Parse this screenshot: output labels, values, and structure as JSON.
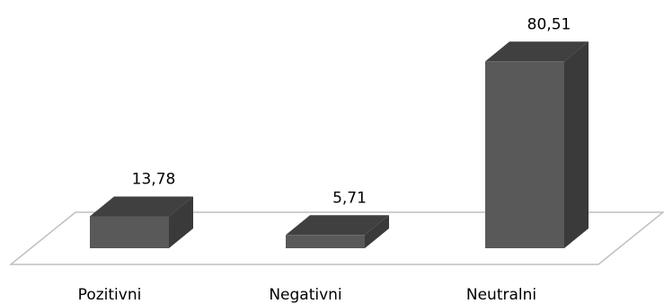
{
  "chart_data": {
    "type": "bar",
    "style": "3d-column",
    "categories": [
      "Pozitivni",
      "Negativni",
      "Neutralni"
    ],
    "values": [
      13.78,
      5.71,
      80.51
    ],
    "data_labels": [
      "13,78",
      "5,71",
      "80,51"
    ],
    "title": "",
    "xlabel": "",
    "ylabel": "",
    "ylim": [
      0,
      100
    ],
    "grid": false,
    "legend": "none",
    "colors": {
      "bar_front": "#595959",
      "bar_top": "#404040",
      "bar_side": "#3a3a3a",
      "floor_stroke": "#bfbfbf"
    }
  }
}
